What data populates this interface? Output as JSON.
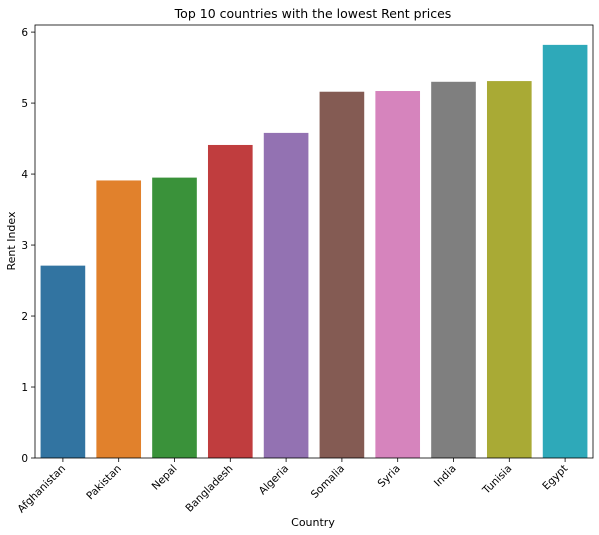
{
  "chart_data": {
    "type": "bar",
    "title": "Top 10 countries with the lowest Rent prices",
    "xlabel": "Country",
    "ylabel": "Rent Index",
    "ylim": [
      0,
      6.1
    ],
    "yticks": [
      0,
      1,
      2,
      3,
      4,
      5,
      6
    ],
    "grid": false,
    "categories": [
      "Afghanistan",
      "Pakistan",
      "Nepal",
      "Bangladesh",
      "Algeria",
      "Somalia",
      "Syria",
      "India",
      "Tunisia",
      "Egypt"
    ],
    "values": [
      2.71,
      3.91,
      3.95,
      4.41,
      4.58,
      5.16,
      5.17,
      5.3,
      5.31,
      5.82
    ],
    "colors": [
      "#3274a1",
      "#e1812c",
      "#3a923a",
      "#c03d3e",
      "#9372b2",
      "#845b53",
      "#d684bd",
      "#7f7f7f",
      "#a9aa35",
      "#2ea9b9"
    ]
  }
}
